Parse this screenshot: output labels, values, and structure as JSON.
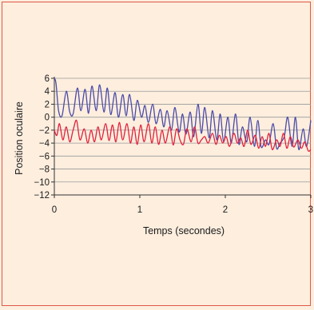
{
  "colors": {
    "background": "#fdeede",
    "frame": "#e0574a",
    "gridline": "#9a9a9a",
    "axis": "#333333",
    "series_blue": "#4a4aa8",
    "series_red": "#e0203c"
  },
  "chart_data": {
    "type": "line",
    "xlabel": "Temps (secondes)",
    "ylabel": "Position oculaire",
    "xlim": [
      0,
      3
    ],
    "ylim": [
      -12,
      6
    ],
    "x_ticks": [
      0,
      1,
      2,
      3
    ],
    "y_ticks": [
      6,
      4,
      2,
      0,
      -2,
      -4,
      -6,
      -8,
      -10,
      -12
    ],
    "x_tick_labels": [
      "0",
      "1",
      "2",
      "3"
    ],
    "y_tick_labels": [
      "6",
      "4",
      "2",
      "0",
      "−2",
      "−4",
      "−6",
      "−8",
      "−10",
      "−12"
    ],
    "grid": "horizontal",
    "series": [
      {
        "color": "#4a4aa8",
        "x": [
          0.0,
          0.02,
          0.05,
          0.09,
          0.14,
          0.18,
          0.22,
          0.27,
          0.31,
          0.36,
          0.4,
          0.44,
          0.49,
          0.53,
          0.58,
          0.62,
          0.66,
          0.71,
          0.75,
          0.8,
          0.84,
          0.88,
          0.93,
          0.97,
          1.02,
          1.06,
          1.1,
          1.15,
          1.19,
          1.24,
          1.28,
          1.32,
          1.37,
          1.41,
          1.46,
          1.5,
          1.54,
          1.59,
          1.63,
          1.68,
          1.72,
          1.76,
          1.81,
          1.85,
          1.9,
          1.94,
          1.98,
          2.03,
          2.07,
          2.12,
          2.16,
          2.2,
          2.25,
          2.29,
          2.34,
          2.38,
          2.42,
          2.47,
          2.51,
          2.56,
          2.6,
          2.64,
          2.69,
          2.73,
          2.78,
          2.82,
          2.86,
          2.91,
          2.95,
          3.0
        ],
        "y": [
          6.0,
          5.2,
          1.0,
          0.2,
          4.0,
          0.8,
          0.5,
          4.5,
          1.0,
          4.3,
          0.6,
          4.8,
          1.0,
          5.0,
          0.8,
          4.5,
          0.4,
          3.8,
          0.0,
          3.5,
          0.2,
          3.5,
          -0.5,
          2.6,
          0.0,
          1.8,
          -0.8,
          2.0,
          -1.0,
          1.2,
          -1.5,
          1.0,
          -2.0,
          1.5,
          -2.3,
          0.5,
          -2.6,
          0.8,
          -3.0,
          2.0,
          -2.5,
          1.5,
          -3.2,
          1.0,
          -3.5,
          0.5,
          -3.8,
          0.0,
          -4.0,
          0.5,
          -4.2,
          -1.5,
          -3.8,
          0.0,
          -4.5,
          -0.5,
          -4.6,
          -3.5,
          -4.2,
          -1.0,
          -4.8,
          -4.0,
          -3.0,
          0.0,
          -4.5,
          0.0,
          -5.0,
          -1.8,
          -4.5,
          -0.5
        ]
      },
      {
        "color": "#e0203c",
        "x": [
          0.0,
          0.03,
          0.06,
          0.1,
          0.14,
          0.18,
          0.22,
          0.26,
          0.3,
          0.35,
          0.39,
          0.43,
          0.47,
          0.51,
          0.55,
          0.6,
          0.64,
          0.68,
          0.72,
          0.76,
          0.8,
          0.85,
          0.89,
          0.93,
          0.97,
          1.01,
          1.05,
          1.1,
          1.14,
          1.18,
          1.22,
          1.26,
          1.3,
          1.35,
          1.39,
          1.43,
          1.47,
          1.51,
          1.55,
          1.6,
          1.64,
          1.68,
          1.72,
          1.76,
          1.8,
          1.85,
          1.89,
          1.93,
          1.97,
          2.01,
          2.05,
          2.1,
          2.14,
          2.18,
          2.22,
          2.26,
          2.3,
          2.35,
          2.39,
          2.43,
          2.47,
          2.51,
          2.55,
          2.6,
          2.64,
          2.68,
          2.72,
          2.76,
          2.8,
          2.85,
          2.89,
          2.93,
          2.97,
          3.0
        ],
        "y": [
          -2.0,
          -2.8,
          -1.0,
          -3.5,
          -1.5,
          -3.8,
          -2.0,
          -0.5,
          -3.5,
          -1.8,
          -4.0,
          -2.0,
          -3.8,
          -1.5,
          -3.5,
          -1.0,
          -3.6,
          -1.2,
          -3.8,
          -0.8,
          -3.5,
          -1.0,
          -4.0,
          -1.5,
          -4.2,
          -1.2,
          -3.8,
          -1.0,
          -4.0,
          -1.5,
          -4.2,
          -2.0,
          -4.0,
          -1.5,
          -4.3,
          -1.8,
          -3.5,
          -4.2,
          -1.8,
          -3.8,
          -1.5,
          -4.0,
          -3.5,
          -3.0,
          -4.0,
          -2.5,
          -4.2,
          -2.8,
          -4.0,
          -3.0,
          -4.5,
          -2.5,
          -4.0,
          -3.2,
          -4.5,
          -2.0,
          -4.2,
          -2.8,
          -4.8,
          -3.0,
          -4.5,
          -2.5,
          -5.0,
          -3.5,
          -4.5,
          -2.5,
          -4.8,
          -3.0,
          -4.6,
          -3.5,
          -4.8,
          -3.8,
          -5.2,
          -5.0
        ]
      }
    ]
  }
}
